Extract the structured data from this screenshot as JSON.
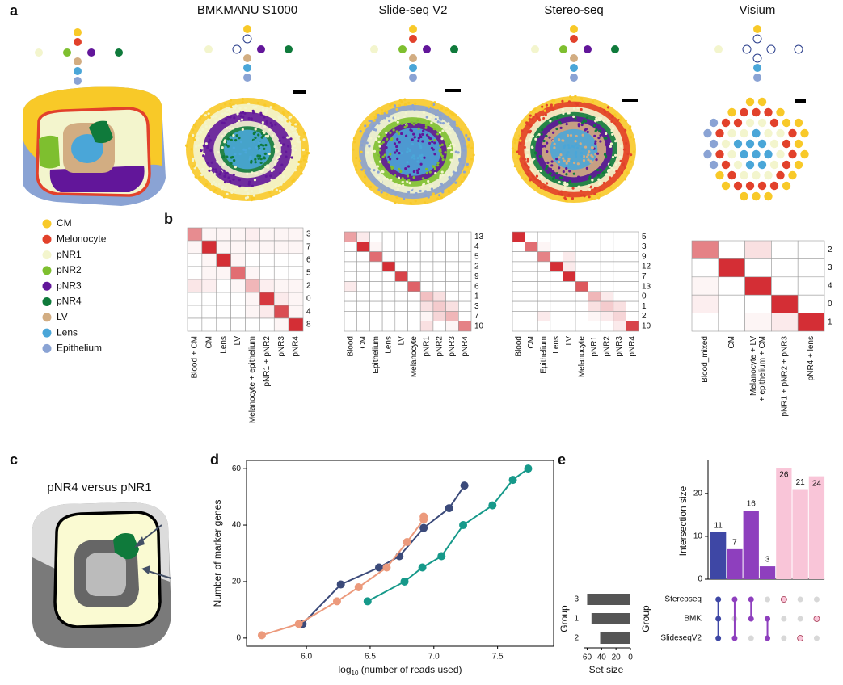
{
  "panel_labels": [
    "a",
    "b",
    "c",
    "d",
    "e"
  ],
  "panel_a": {
    "platforms": [
      "BMKMANU S1000",
      "Slide-seq V2",
      "Stereo-seq",
      "Visium"
    ],
    "legend": [
      {
        "name": "CM",
        "color": "#f8c928"
      },
      {
        "name": "Melonocyte",
        "color": "#e2412b"
      },
      {
        "name": "pNR1",
        "color": "#f3f5cd"
      },
      {
        "name": "pNR2",
        "color": "#7ebf2f"
      },
      {
        "name": "pNR3",
        "color": "#62169a"
      },
      {
        "name": "pNR4",
        "color": "#0f7a3b"
      },
      {
        "name": "LV",
        "color": "#d2ad82"
      },
      {
        "name": "Lens",
        "color": "#4aa6d8"
      },
      {
        "name": "Epithelium",
        "color": "#8aa3d4"
      }
    ]
  },
  "panel_c": {
    "title": "pNR4 versus pNR1"
  },
  "chart_data": [
    {
      "type": "heatmap",
      "color": "#d42e35",
      "categories": [
        "Blood + CM",
        "CM",
        "Lens",
        "LV",
        "Melanocyte + epithelium",
        "pNR1 + pNR2",
        "pNR3",
        "pNR4"
      ],
      "row_labels": [
        "3",
        "7",
        "6",
        "5",
        "2",
        "0",
        "4",
        "8"
      ],
      "values": [
        [
          0.55,
          0.05,
          0.05,
          0.05,
          0.08,
          0.05,
          0.05,
          0.05
        ],
        [
          0.05,
          1,
          0.05,
          0.05,
          0.05,
          0.05,
          0.05,
          0.05
        ],
        [
          0,
          0.05,
          1,
          0.05,
          0,
          0,
          0,
          0
        ],
        [
          0,
          0.05,
          0.05,
          0.7,
          0.05,
          0,
          0,
          0
        ],
        [
          0.12,
          0.08,
          0,
          0.05,
          0.35,
          0.08,
          0.05,
          0.05
        ],
        [
          0,
          0,
          0,
          0,
          0.05,
          0.95,
          0.1,
          0.05
        ],
        [
          0,
          0,
          0,
          0,
          0.05,
          0.1,
          0.85,
          0.05
        ],
        [
          0,
          0,
          0,
          0,
          0,
          0,
          0.05,
          1
        ]
      ]
    },
    {
      "type": "heatmap",
      "color": "#d42e35",
      "categories": [
        "Blood",
        "CM",
        "Epithelium",
        "Lens",
        "LV",
        "Melanocyte",
        "pNR1",
        "pNR2",
        "pNR3",
        "pNR4"
      ],
      "row_labels": [
        "13",
        "4",
        "5",
        "2",
        "9",
        "6",
        "1",
        "3",
        "7",
        "10"
      ],
      "values": [
        [
          0.45,
          0.1,
          0,
          0,
          0,
          0,
          0,
          0,
          0,
          0
        ],
        [
          0,
          1,
          0.05,
          0,
          0,
          0,
          0,
          0,
          0,
          0
        ],
        [
          0,
          0,
          0.7,
          0,
          0,
          0,
          0,
          0,
          0,
          0
        ],
        [
          0,
          0,
          0,
          1,
          0,
          0,
          0,
          0,
          0,
          0
        ],
        [
          0,
          0,
          0,
          0,
          0.9,
          0,
          0,
          0,
          0,
          0
        ],
        [
          0.1,
          0,
          0,
          0,
          0,
          0.75,
          0,
          0,
          0,
          0
        ],
        [
          0,
          0,
          0,
          0,
          0,
          0,
          0.3,
          0.15,
          0,
          0
        ],
        [
          0,
          0,
          0,
          0,
          0,
          0,
          0.15,
          0.25,
          0.15,
          0
        ],
        [
          0,
          0,
          0,
          0,
          0,
          0,
          0.05,
          0.2,
          0.35,
          0
        ],
        [
          0,
          0,
          0,
          0,
          0,
          0,
          0.15,
          0,
          0.05,
          0.6
        ]
      ]
    },
    {
      "type": "heatmap",
      "color": "#d42e35",
      "categories": [
        "Blood",
        "CM",
        "Epithelium",
        "Lens",
        "LV",
        "Melanocyte",
        "pNR1",
        "pNR2",
        "pNR3",
        "pNR4"
      ],
      "row_labels": [
        "5",
        "3",
        "9",
        "12",
        "7",
        "13",
        "0",
        "1",
        "2",
        "10"
      ],
      "values": [
        [
          1,
          0,
          0,
          0,
          0,
          0,
          0,
          0,
          0,
          0
        ],
        [
          0,
          0.7,
          0.05,
          0,
          0,
          0,
          0,
          0,
          0,
          0
        ],
        [
          0,
          0,
          0.6,
          0,
          0.1,
          0,
          0,
          0,
          0,
          0
        ],
        [
          0,
          0,
          0,
          1,
          0.1,
          0,
          0,
          0,
          0,
          0
        ],
        [
          0,
          0,
          0,
          0,
          1,
          0,
          0,
          0,
          0,
          0
        ],
        [
          0,
          0,
          0,
          0,
          0,
          0.8,
          0,
          0,
          0,
          0
        ],
        [
          0,
          0,
          0,
          0,
          0,
          0,
          0.35,
          0.1,
          0,
          0
        ],
        [
          0,
          0,
          0,
          0,
          0,
          0,
          0.15,
          0.25,
          0.15,
          0
        ],
        [
          0,
          0,
          0.1,
          0,
          0,
          0,
          0.05,
          0.1,
          0.2,
          0
        ],
        [
          0,
          0,
          0,
          0,
          0,
          0,
          0,
          0,
          0.1,
          0.9
        ]
      ]
    },
    {
      "type": "heatmap",
      "color": "#d42e35",
      "categories": [
        "Blood_mixed",
        "CM",
        [
          "Melanocyte + LV",
          "+ epithelium + CM"
        ],
        "pNR1 + pNR2 + pNR3",
        "pNR4 + lens"
      ],
      "row_labels": [
        "2",
        "3",
        "4",
        "0",
        "1"
      ],
      "values": [
        [
          0.6,
          0,
          0.15,
          0,
          0
        ],
        [
          0,
          1,
          0,
          0,
          0
        ],
        [
          0.05,
          0,
          1,
          0,
          0
        ],
        [
          0.08,
          0,
          0,
          1,
          0
        ],
        [
          0,
          0,
          0.05,
          0.1,
          1
        ]
      ]
    },
    {
      "type": "line",
      "y_label": "Number of marker genes",
      "x_label": [
        "log",
        "10",
        " (number of reads used)"
      ],
      "xlim": [
        5.53,
        7.94
      ],
      "ylim": [
        -2.9,
        62.9
      ],
      "xticks": [
        {
          "value": 6,
          "label": "6.0"
        },
        6.5,
        {
          "value": 7,
          "label": "7.0"
        },
        7.5
      ],
      "yticks": [
        0,
        20,
        40,
        60
      ],
      "series": [
        {
          "color": "#3b4a7a",
          "x": [
            5.97,
            6.27,
            6.57,
            6.73,
            6.92,
            7.12,
            7.24
          ],
          "values": [
            5,
            19,
            25,
            29,
            39,
            46,
            54
          ]
        },
        {
          "color": "#ec9a7c",
          "x": [
            5.65,
            5.94,
            6.24,
            6.41,
            6.63,
            6.79,
            6.92,
            6.92
          ],
          "values": [
            1,
            5,
            13,
            18,
            25,
            34,
            42,
            43
          ]
        },
        {
          "color": "#16998a",
          "x": [
            6.48,
            6.77,
            6.91,
            7.06,
            7.23,
            7.46,
            7.62,
            7.74
          ],
          "values": [
            13,
            20,
            25,
            29,
            40,
            47,
            56,
            60
          ]
        }
      ]
    },
    {
      "type": "bar",
      "y_label": "Intersection size",
      "ylim": [
        0,
        27.7
      ],
      "yticks": [
        0,
        10,
        20
      ],
      "values": [
        11,
        7,
        16,
        3,
        26,
        21,
        24
      ],
      "colors": [
        "#3e47a5",
        "#8e3fbe",
        "#8e3fbe",
        "#8e3fbe",
        "#f9c5d8",
        "#f9c5d8",
        "#f9c5d8"
      ],
      "sets": [
        "Stereoseq",
        "BMK",
        "SlideseqV2"
      ],
      "membership": [
        [
          0,
          1,
          2
        ],
        [
          0,
          2
        ],
        [
          0,
          1
        ],
        [
          1,
          2
        ],
        [
          0
        ],
        [
          2
        ],
        [
          1
        ]
      ],
      "matrix_label": "Group"
    },
    {
      "type": "barh",
      "categories": [
        "3",
        "1",
        "2"
      ],
      "values": [
        60,
        54,
        42
      ],
      "color": "#555555",
      "xlim": [
        65,
        0
      ],
      "xticks": [
        60,
        40,
        20,
        0
      ],
      "x_label": "Set size",
      "y_label": "Group"
    }
  ]
}
